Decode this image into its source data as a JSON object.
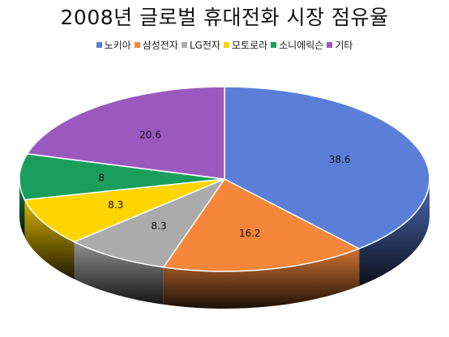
{
  "chart_data": {
    "type": "pie",
    "title": "2008년 글로벌 휴대전화 시장 점유율",
    "categories": [
      "노키아",
      "삼성전자",
      "LG전자",
      "모토로라",
      "소니에릭슨",
      "기타"
    ],
    "values": [
      38.6,
      16.2,
      8.3,
      8.3,
      8,
      20.6
    ],
    "colors": [
      "#5B7FD8",
      "#F5863A",
      "#ABABAB",
      "#FFD500",
      "#1A9E5C",
      "#9B59C0"
    ],
    "legend_position": "top",
    "style": "3d",
    "data_labels": true
  }
}
